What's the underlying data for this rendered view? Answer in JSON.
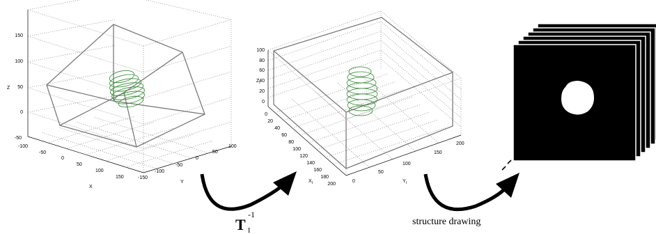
{
  "left_plot": {
    "z_ticks": [
      "150",
      "100",
      "50",
      "0",
      "-50"
    ],
    "x_ticks": [
      "-100",
      "-50",
      "0",
      "50",
      "100",
      "150"
    ],
    "y_ticks": [
      "-150",
      "-100",
      "-50",
      "0",
      "50",
      "100"
    ],
    "x_label": "X",
    "y_label": "Y",
    "z_label": "Z"
  },
  "middle_plot": {
    "z_ticks": [
      "100",
      "80",
      "60",
      "40",
      "20",
      "0"
    ],
    "x_ticks": [
      "0",
      "20",
      "40",
      "60",
      "80",
      "100",
      "120",
      "140",
      "160",
      "180",
      "200"
    ],
    "y_ticks": [
      "0",
      "50",
      "100",
      "150",
      "200"
    ],
    "x_label": "X",
    "x_sub": "I",
    "y_label": "Y",
    "y_sub": "I",
    "z_label": "Z",
    "z_sub": "I"
  },
  "transform": {
    "symbol": "T",
    "subscript": "I",
    "superscript": "-1"
  },
  "structure_caption": "structure drawing",
  "slice_count": 6,
  "colors": {
    "coil": "#2e8b2e",
    "box": "#7a7a7a",
    "slice": "#000000",
    "mask": "#ffffff"
  }
}
